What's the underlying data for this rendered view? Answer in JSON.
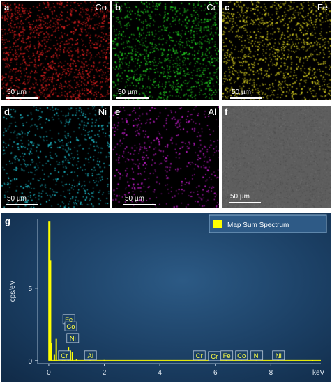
{
  "figure": {
    "panels": [
      {
        "letter": "a",
        "element": "Co",
        "color": "#e02020",
        "scale": "50 µm"
      },
      {
        "letter": "b",
        "element": "Cr",
        "color": "#22d022",
        "scale": "50 µm"
      },
      {
        "letter": "c",
        "element": "Fe",
        "color": "#d8d020",
        "scale": "50 µm"
      },
      {
        "letter": "d",
        "element": "Ni",
        "color": "#20c8d8",
        "scale": "50 µm"
      },
      {
        "letter": "e",
        "element": "Al",
        "color": "#d020d8",
        "scale": "50 µm"
      },
      {
        "letter": "f",
        "element": "",
        "color": "#8a8a8a",
        "scale": "50 µm"
      }
    ],
    "spectrum_label": "g"
  },
  "chart_data": {
    "type": "line",
    "xlabel": "keV",
    "ylabel": "cps/eV",
    "xlim": [
      -0.4,
      9.8
    ],
    "ylim": [
      -0.2,
      9.8
    ],
    "xticks": [
      0,
      2,
      4,
      6,
      8
    ],
    "yticks": [
      0,
      5
    ],
    "legend": {
      "label": "Map Sum Spectrum",
      "position": "top-right",
      "color": "#ffff00"
    },
    "series": [
      {
        "name": "Map Sum Spectrum",
        "color": "#ffff00",
        "x": [
          0.02,
          0.05,
          0.1,
          0.2,
          0.27,
          0.5,
          0.57,
          0.71,
          0.78,
          0.85,
          1.0,
          1.49,
          2.0,
          5.41,
          5.9,
          6.4,
          6.93,
          7.48,
          8.26,
          9.5
        ],
        "y": [
          9.6,
          6.9,
          1.2,
          0.4,
          1.5,
          0.3,
          0.6,
          0.9,
          0.7,
          0.6,
          0.1,
          0.2,
          0.05,
          0.35,
          0.08,
          0.35,
          0.25,
          0.3,
          0.05,
          0.02
        ]
      }
    ],
    "annotations": [
      {
        "label": "Fe",
        "x": 0.71,
        "y": 2.55
      },
      {
        "label": "Co",
        "x": 0.78,
        "y": 2.05
      },
      {
        "label": "Ni",
        "x": 0.85,
        "y": 1.25
      },
      {
        "label": "Cr",
        "x": 0.55,
        "y": 0.05
      },
      {
        "label": "Al",
        "x": 1.49,
        "y": 0.05
      },
      {
        "label": "Cr",
        "x": 5.41,
        "y": 0.05
      },
      {
        "label": "Cr",
        "x": 5.95,
        "y": 0.0
      },
      {
        "label": "Fe",
        "x": 6.4,
        "y": 0.05
      },
      {
        "label": "Co",
        "x": 6.93,
        "y": 0.05
      },
      {
        "label": "Ni",
        "x": 7.48,
        "y": 0.05
      },
      {
        "label": "Ni",
        "x": 8.26,
        "y": 0.05
      }
    ]
  }
}
